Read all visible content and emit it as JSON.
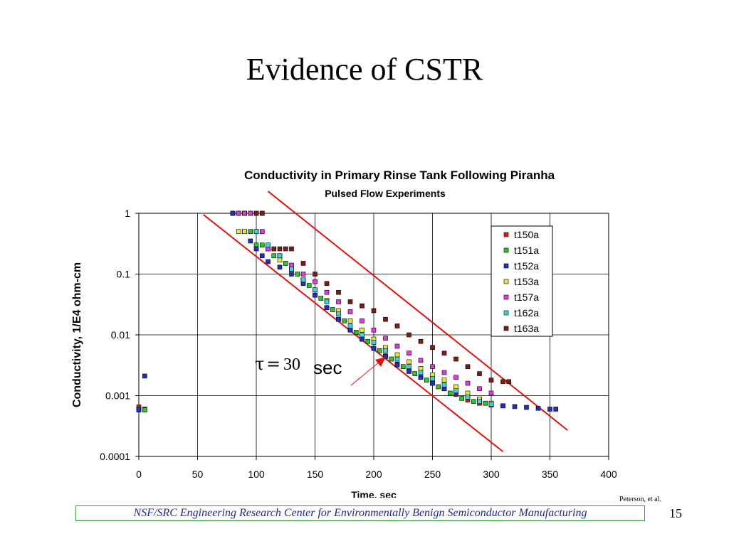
{
  "slide": {
    "title": "Evidence of CSTR",
    "footer": "NSF/SRC Engineering Research Center for Environmentally Benign Semiconductor Manufacturing",
    "credit": "Peterson, et al.",
    "page_number": "15"
  },
  "annotation": {
    "tau_symbol": "τ",
    "equals": "=",
    "tau_value": "30",
    "unit": "sec",
    "arrow_color": "#e3120b"
  },
  "chart_data": {
    "type": "scatter",
    "title": "Conductivity in Primary Rinse Tank Following Piranha",
    "subtitle": "Pulsed Flow Experiments",
    "xlabel": "Time, sec",
    "ylabel": "Conductivity, 1/E4 ohm-cm",
    "xlim": [
      0,
      400
    ],
    "ylim": [
      0.0001,
      1
    ],
    "yscale": "log",
    "xticks": [
      "0",
      "50",
      "100",
      "150",
      "200",
      "250",
      "300",
      "350",
      "400"
    ],
    "yticks": [
      "0.0001",
      "0.001",
      "0.01",
      "0.1",
      "1"
    ],
    "grid": true,
    "legend_position": "right",
    "reference_lines": [
      {
        "x": [
          55,
          310
        ],
        "y": [
          0.95,
          0.00012
        ],
        "color": "#e3120b"
      },
      {
        "x": [
          110,
          365
        ],
        "y": [
          2.3,
          0.00027
        ],
        "color": "#e3120b"
      }
    ],
    "series": [
      {
        "name": "t150a",
        "color": "#c8261c",
        "points": [
          [
            0,
            0.00065
          ],
          [
            5,
            0.0006
          ],
          [
            80,
            1
          ],
          [
            85,
            1
          ],
          [
            90,
            1
          ],
          [
            95,
            1
          ],
          [
            100,
            1
          ],
          [
            105,
            1
          ],
          [
            120,
            0.2
          ],
          [
            130,
            0.12
          ],
          [
            140,
            0.08
          ],
          [
            150,
            0.045
          ],
          [
            160,
            0.028
          ],
          [
            170,
            0.018
          ],
          [
            180,
            0.012
          ],
          [
            190,
            0.0085
          ],
          [
            200,
            0.006
          ],
          [
            210,
            0.0045
          ],
          [
            220,
            0.0033
          ],
          [
            230,
            0.0026
          ],
          [
            240,
            0.002
          ],
          [
            250,
            0.0016
          ],
          [
            260,
            0.0013
          ],
          [
            270,
            0.00105
          ],
          [
            280,
            0.00085
          ],
          [
            290,
            0.00075
          ],
          [
            300,
            0.0007
          ],
          [
            310,
            0.00068
          ]
        ]
      },
      {
        "name": "t151a",
        "color": "#2cc52c",
        "points": [
          [
            0,
            0.0006
          ],
          [
            5,
            0.00058
          ],
          [
            80,
            1
          ],
          [
            85,
            1
          ],
          [
            90,
            0.5
          ],
          [
            95,
            0.5
          ],
          [
            100,
            0.3
          ],
          [
            105,
            0.3
          ],
          [
            115,
            0.2
          ],
          [
            125,
            0.15
          ],
          [
            135,
            0.1
          ],
          [
            145,
            0.065
          ],
          [
            155,
            0.04
          ],
          [
            165,
            0.026
          ],
          [
            175,
            0.017
          ],
          [
            185,
            0.011
          ],
          [
            195,
            0.0078
          ],
          [
            205,
            0.0055
          ],
          [
            215,
            0.004
          ],
          [
            225,
            0.003
          ],
          [
            235,
            0.0023
          ],
          [
            245,
            0.0018
          ],
          [
            255,
            0.0014
          ],
          [
            265,
            0.0011
          ],
          [
            275,
            0.0009
          ],
          [
            285,
            0.0008
          ],
          [
            295,
            0.00075
          ],
          [
            300,
            0.00072
          ]
        ]
      },
      {
        "name": "t152a",
        "color": "#1f2fc8",
        "points": [
          [
            0,
            0.00058
          ],
          [
            5,
            0.0021
          ],
          [
            80,
            1
          ],
          [
            90,
            1
          ],
          [
            95,
            0.35
          ],
          [
            100,
            0.26
          ],
          [
            105,
            0.2
          ],
          [
            110,
            0.16
          ],
          [
            120,
            0.13
          ],
          [
            130,
            0.1
          ],
          [
            140,
            0.07
          ],
          [
            150,
            0.045
          ],
          [
            160,
            0.028
          ],
          [
            170,
            0.018
          ],
          [
            180,
            0.012
          ],
          [
            190,
            0.0085
          ],
          [
            200,
            0.006
          ],
          [
            210,
            0.0044
          ],
          [
            220,
            0.0032
          ],
          [
            230,
            0.0025
          ],
          [
            240,
            0.002
          ],
          [
            250,
            0.0016
          ],
          [
            260,
            0.0013
          ],
          [
            270,
            0.0011
          ],
          [
            280,
            0.00095
          ],
          [
            290,
            0.00085
          ],
          [
            300,
            0.00075
          ],
          [
            310,
            0.00068
          ],
          [
            320,
            0.00066
          ],
          [
            330,
            0.00064
          ],
          [
            340,
            0.00062
          ],
          [
            350,
            0.0006
          ],
          [
            355,
            0.0006
          ]
        ]
      },
      {
        "name": "t153a",
        "color": "#e8e83a",
        "points": [
          [
            85,
            0.5
          ],
          [
            90,
            0.5
          ],
          [
            100,
            0.5
          ],
          [
            105,
            0.5
          ],
          [
            110,
            0.26
          ],
          [
            120,
            0.17
          ],
          [
            130,
            0.12
          ],
          [
            140,
            0.08
          ],
          [
            150,
            0.055
          ],
          [
            160,
            0.037
          ],
          [
            170,
            0.025
          ],
          [
            180,
            0.017
          ],
          [
            190,
            0.012
          ],
          [
            200,
            0.0085
          ],
          [
            210,
            0.0062
          ],
          [
            220,
            0.0047
          ],
          [
            230,
            0.0036
          ],
          [
            240,
            0.0028
          ],
          [
            250,
            0.0022
          ],
          [
            260,
            0.0018
          ],
          [
            270,
            0.0014
          ],
          [
            280,
            0.0011
          ],
          [
            290,
            0.00088
          ],
          [
            300,
            0.00075
          ]
        ]
      },
      {
        "name": "t157a",
        "color": "#e03ae0",
        "points": [
          [
            85,
            1
          ],
          [
            90,
            1
          ],
          [
            95,
            1
          ],
          [
            100,
            0.5
          ],
          [
            105,
            0.5
          ],
          [
            110,
            0.26
          ],
          [
            120,
            0.2
          ],
          [
            130,
            0.14
          ],
          [
            140,
            0.1
          ],
          [
            150,
            0.075
          ],
          [
            160,
            0.05
          ],
          [
            170,
            0.035
          ],
          [
            180,
            0.024
          ],
          [
            190,
            0.017
          ],
          [
            200,
            0.012
          ],
          [
            210,
            0.0088
          ],
          [
            220,
            0.0065
          ],
          [
            230,
            0.005
          ],
          [
            240,
            0.0038
          ],
          [
            250,
            0.003
          ],
          [
            260,
            0.0024
          ],
          [
            270,
            0.002
          ],
          [
            280,
            0.0016
          ],
          [
            290,
            0.0013
          ],
          [
            300,
            0.0011
          ]
        ]
      },
      {
        "name": "t162a",
        "color": "#3ad6d6",
        "points": [
          [
            100,
            0.5
          ],
          [
            110,
            0.3
          ],
          [
            120,
            0.2
          ],
          [
            130,
            0.12
          ],
          [
            140,
            0.08
          ],
          [
            150,
            0.055
          ],
          [
            160,
            0.035
          ],
          [
            170,
            0.022
          ],
          [
            180,
            0.014
          ],
          [
            190,
            0.01
          ],
          [
            200,
            0.0075
          ],
          [
            210,
            0.0055
          ],
          [
            220,
            0.004
          ],
          [
            230,
            0.003
          ],
          [
            240,
            0.0024
          ],
          [
            250,
            0.0019
          ],
          [
            260,
            0.0015
          ],
          [
            270,
            0.0012
          ],
          [
            280,
            0.00095
          ],
          [
            290,
            0.0008
          ],
          [
            300,
            0.00072
          ]
        ]
      },
      {
        "name": "t163a",
        "color": "#7a1f14",
        "points": [
          [
            100,
            1
          ],
          [
            105,
            1
          ],
          [
            115,
            0.26
          ],
          [
            120,
            0.26
          ],
          [
            125,
            0.26
          ],
          [
            130,
            0.26
          ],
          [
            140,
            0.15
          ],
          [
            150,
            0.1
          ],
          [
            160,
            0.07
          ],
          [
            170,
            0.05
          ],
          [
            180,
            0.035
          ],
          [
            190,
            0.03
          ],
          [
            200,
            0.025
          ],
          [
            210,
            0.018
          ],
          [
            220,
            0.014
          ],
          [
            230,
            0.01
          ],
          [
            240,
            0.0078
          ],
          [
            250,
            0.0062
          ],
          [
            260,
            0.005
          ],
          [
            270,
            0.004
          ],
          [
            280,
            0.003
          ],
          [
            290,
            0.0023
          ],
          [
            300,
            0.0018
          ],
          [
            310,
            0.0017
          ],
          [
            315,
            0.0017
          ]
        ]
      }
    ]
  }
}
